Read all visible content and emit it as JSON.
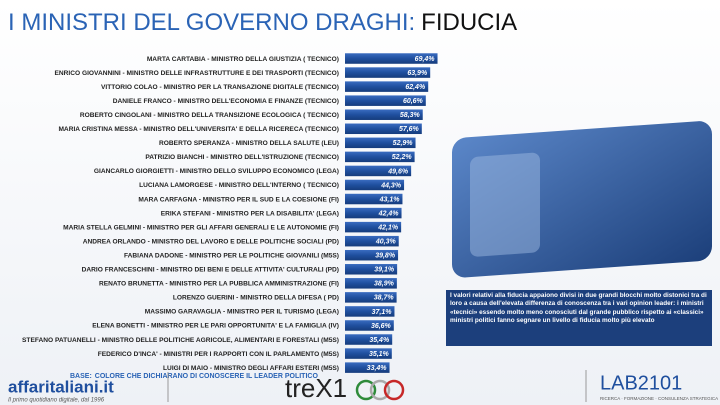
{
  "chart_data": {
    "type": "barh",
    "title": "I MINISTRI DEL GOVERNO DRAGHI:",
    "title_highlight": "FIDUCIA",
    "categories": [
      "MARTA CARTABIA - MINISTRO DELLA GIUSTIZIA ( TECNICO)",
      "ENRICO GIOVANNINI - MINISTRO DELLE INFRASTRUTTURE E DEI TRASPORTI (TECNICO)",
      "VITTORIO COLAO - MINISTRO PER LA TRANSAZIONE DIGITALE (TECNICO)",
      "DANIELE FRANCO - MINISTRO DELL'ECONOMIA E FINANZE (TECNICO)",
      "ROBERTO CINGOLANI - MINISTRO DELLA TRANSIZIONE ECOLOGICA ( TECNICO)",
      "MARIA CRISTINA MESSA - MINISTRO DELL'UNIVERSITA' E DELLA RICERECA (TECNICO)",
      "ROBERTO SPERANZA - MINISTRO DELLA SALUTE (LEU)",
      "PATRIZIO BIANCHI - MINISTRO DELL'ISTRUZIONE (TECNICO)",
      "GIANCARLO GIORGIETTI - MINISTRO DELLO SVILUPPO ECONOMICO (LEGA)",
      "LUCIANA LAMORGESE - MINISTRO DELL'INTERNO ( TECNICO)",
      "MARA CARFAGNA - MINISTRO PER IL SUD E LA COESIONE (FI)",
      "ERIKA STEFANI - MINISTRO PER LA DISABILITA' (LEGA)",
      "MARIA STELLA GELMINI - MINISTRO PER GLI AFFARI GENERALI E LE AUTONOMIE (FI)",
      "ANDREA ORLANDO - MINISTRO DEL LAVORO E DELLE POLITICHE SOCIALI (PD)",
      "FABIANA DADONE - MINISTRO PER LE POLITICHE GIOVANILI (M5S)",
      "DARIO FRANCESCHINI - MINISTRO DEI BENI E DELLE ATTIVITA' CULTURALI (PD)",
      "RENATO BRUNETTA - MINISTRO PER LA PUBBLICA AMMINISTRAZIONE (FI)",
      "LORENZO GUERINI - MINISTRO DELLA DIFESA ( PD)",
      "MASSIMO GARAVAGLIA - MINISTRO PER IL TURISMO (LEGA)",
      "ELENA BONETTI - MINISTRO PER LE PARI OPPORTUNITA' E LA FAMIGLIA (IV)",
      "STEFANO PATUANELLI - MINISTRO DELLE POLITICHE AGRICOLE, ALIMENTARI E FORESTALI (M5S)",
      "FEDERICO D'INCA' - MINISTRI PER I RAPPORTI CON IL PARLAMENTO (M5S)",
      "LUIGI DI MAIO - MINISTRO DEGLI AFFARI ESTERI (M5S)"
    ],
    "values": [
      69.4,
      63.9,
      62.4,
      60.6,
      58.3,
      57.6,
      52.9,
      52.2,
      49.6,
      44.3,
      43.1,
      42.4,
      42.1,
      40.3,
      39.8,
      39.1,
      38.9,
      38.7,
      37.1,
      36.6,
      35.4,
      35.1,
      33.4
    ],
    "value_labels": [
      "69,4%",
      "63,9%",
      "62,4%",
      "60,6%",
      "58,3%",
      "57,6%",
      "52,9%",
      "52,2%",
      "49,6%",
      "44,3%",
      "43,1%",
      "42,4%",
      "42,1%",
      "40,3%",
      "39,8%",
      "39,1%",
      "38,9%",
      "38,7%",
      "37,1%",
      "36,6%",
      "35,4%",
      "35,1%",
      "33,4%"
    ],
    "color": "#1f4f9e",
    "xlim": [
      0,
      75
    ],
    "note": "I valori relativi alla fiducia appaiono divisi in due grandi blocchi molto distonici tra di loro a causa dell'elevata differenza di conoscenza tra i vari opinion leader: i ministri «tecnici» essendo molto meno conosciuti dal grande pubblico rispetto ai «classici» ministri politici fanno segnare un livello di fiducia molto più elevato",
    "base_label": "BASE:",
    "base_text": "COLORE CHE DICHIARANO DI CONOSCERE IL LEADER POLITICO",
    "logo_left": "affaritaliani.it",
    "logo_left_tagline": "Il primo quotidiano digitale, dal 1996",
    "logo_center": "treX1",
    "logo_right": "LAB2101",
    "logo_right_tagline": "RICERCA · FORMAZIONE · CONSULENZA STRATEGICA"
  }
}
